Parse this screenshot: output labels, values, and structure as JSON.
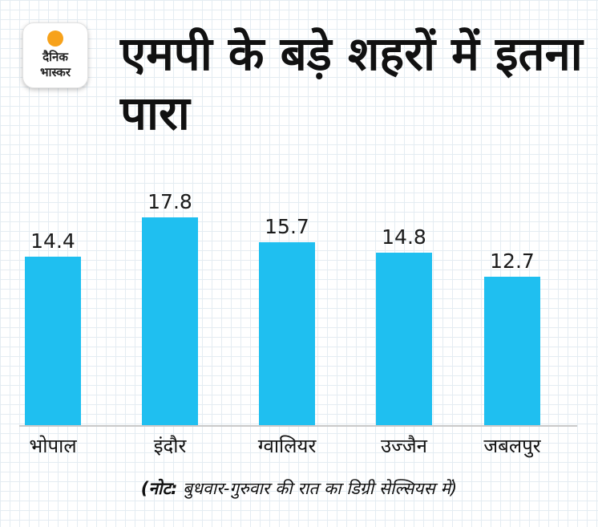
{
  "logo": {
    "line1": "दैनिक",
    "line2": "भास्कर"
  },
  "title": "एमपी के बड़े शहरों में इतना पारा",
  "note": {
    "prefix": "(नोट:",
    "text": " बुधवार-गुरुवार की रात का डिग्री सेल्सियस में)"
  },
  "colors": {
    "bar": "#1fbff0",
    "sun": "#f7a21b"
  },
  "chart_data": {
    "type": "bar",
    "title": "एमपी के बड़े शहरों में इतना पारा",
    "categories": [
      "भोपाल",
      "इंदौर",
      "ग्वालियर",
      "उज्जैन",
      "जबलपुर"
    ],
    "values": [
      14.4,
      17.8,
      15.7,
      14.8,
      12.7
    ],
    "value_labels": [
      "14.4",
      "17.8",
      "15.7",
      "14.8",
      "12.7"
    ],
    "ylim": [
      0,
      20
    ],
    "grid": false,
    "data_labels": true
  }
}
